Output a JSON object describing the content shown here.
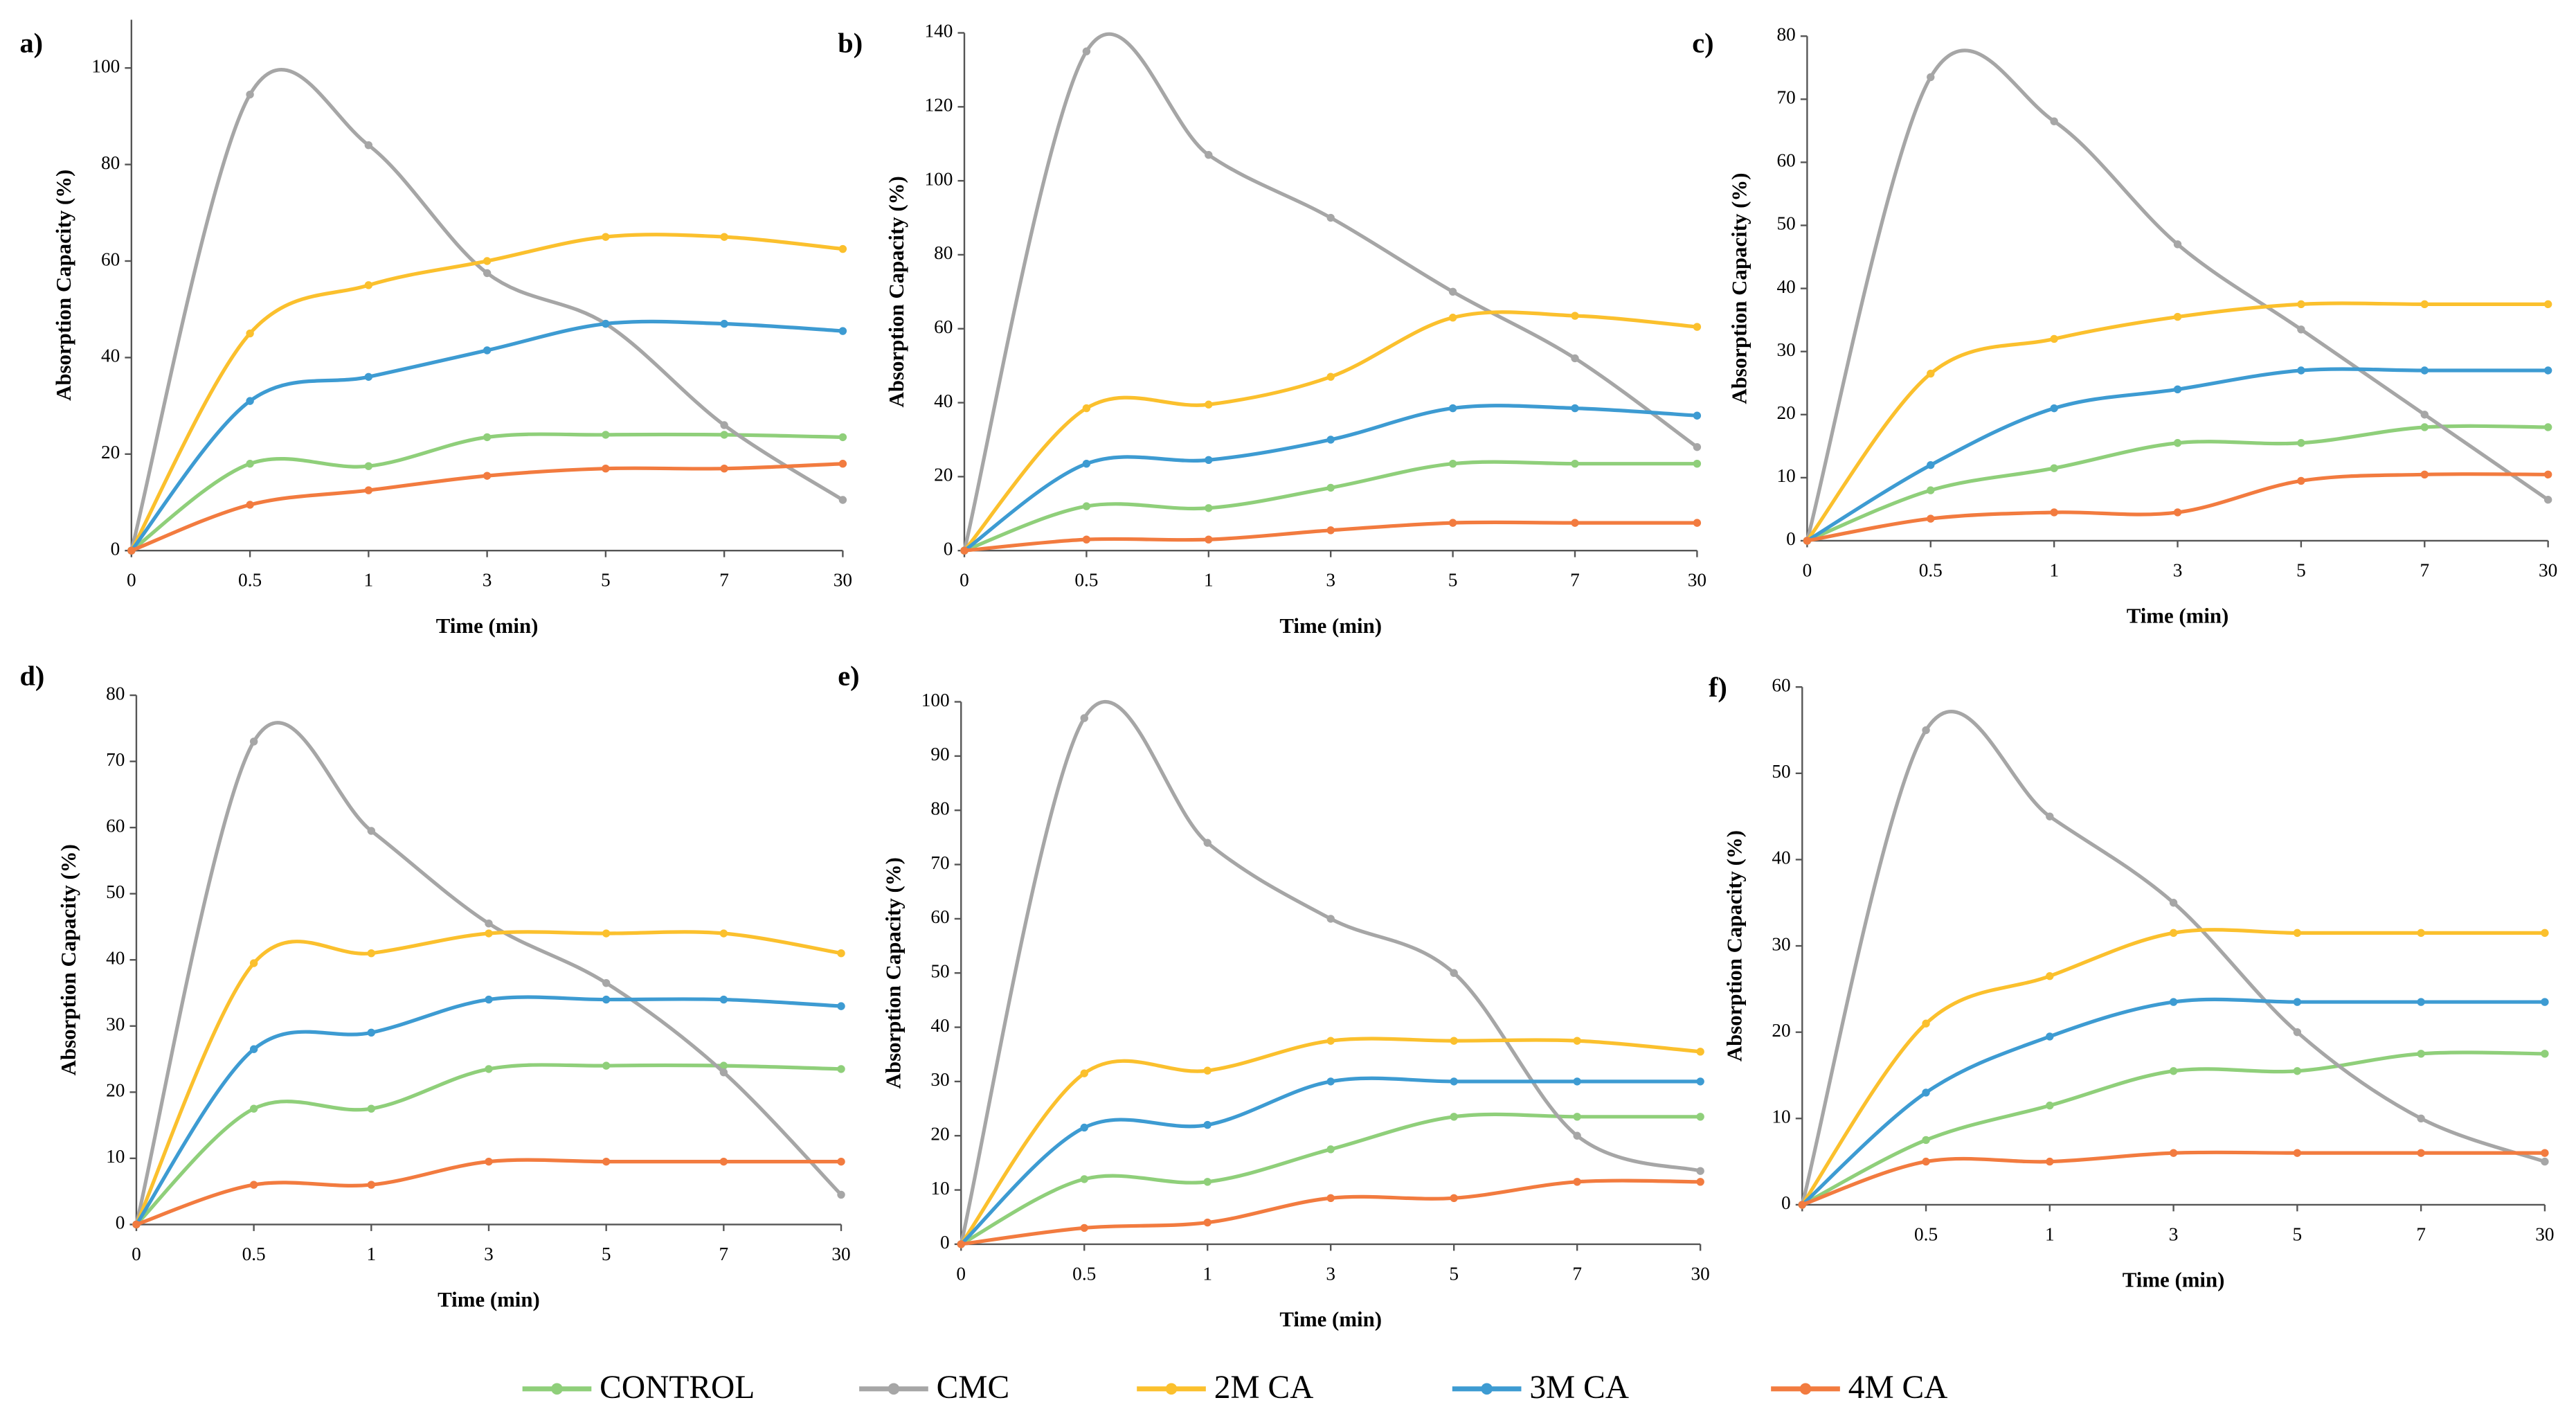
{
  "chart_data": [
    {
      "type": "line",
      "label": "a)",
      "x_label": "Time (min)",
      "y_label": "Absorption Capacity (%)",
      "categories": [
        "0",
        "0.5",
        "1",
        "3",
        "5",
        "7",
        "30"
      ],
      "ylim": [
        0,
        110
      ],
      "yticks": [
        0,
        20,
        40,
        60,
        80,
        100
      ],
      "series": [
        {
          "name": "CONTROL",
          "color": "#8fcf7a",
          "values": [
            0,
            18,
            17.5,
            23.5,
            24,
            24,
            23.5
          ]
        },
        {
          "name": "CMC",
          "color": "#a6a6a6",
          "values": [
            0,
            94.5,
            84,
            57.5,
            47,
            26,
            10.5
          ]
        },
        {
          "name": "2M CA",
          "color": "#fbc02d",
          "values": [
            0,
            45,
            55,
            60,
            65,
            65,
            62.5
          ]
        },
        {
          "name": "3M CA",
          "color": "#3d9bd2",
          "values": [
            0,
            31,
            36,
            41.5,
            47,
            47,
            45.5
          ]
        },
        {
          "name": "4M CA",
          "color": "#f27b3f",
          "values": [
            0,
            9.5,
            12.5,
            15.5,
            17,
            17,
            18
          ]
        }
      ]
    },
    {
      "type": "line",
      "label": "b)",
      "x_label": "Time (min)",
      "y_label": "Absorption Capacity (%)",
      "categories": [
        "0",
        "0.5",
        "1",
        "3",
        "5",
        "7",
        "30"
      ],
      "ylim": [
        0,
        140
      ],
      "yticks": [
        0,
        20,
        40,
        60,
        80,
        100,
        120,
        140
      ],
      "series": [
        {
          "values": [
            0,
            12,
            11.5,
            17,
            23.5,
            23.5,
            23.5
          ]
        },
        {
          "values": [
            0,
            135,
            107,
            90,
            70,
            52,
            28
          ]
        },
        {
          "values": [
            0,
            38.5,
            39.5,
            47,
            63,
            63.5,
            60.5
          ]
        },
        {
          "values": [
            0,
            23.5,
            24.5,
            30,
            38.5,
            38.5,
            36.5
          ]
        },
        {
          "values": [
            0,
            3,
            3,
            5.5,
            7.5,
            7.5,
            7.5
          ]
        }
      ]
    },
    {
      "type": "line",
      "label": "c)",
      "x_label": "Time (min)",
      "y_label": "Absorption Capacity (%)",
      "categories": [
        "0",
        "0.5",
        "1",
        "3",
        "5",
        "7",
        "30"
      ],
      "ylim": [
        0,
        80
      ],
      "yticks": [
        0,
        10,
        20,
        30,
        40,
        50,
        60,
        70,
        80
      ],
      "series": [
        {
          "values": [
            0,
            8,
            11.5,
            15.5,
            15.5,
            18,
            18
          ]
        },
        {
          "values": [
            0,
            73.5,
            66.5,
            47,
            33.5,
            20,
            6.5
          ]
        },
        {
          "values": [
            0,
            26.5,
            32,
            35.5,
            37.5,
            37.5,
            37.5
          ]
        },
        {
          "values": [
            0,
            12,
            21,
            24,
            27,
            27,
            27
          ]
        },
        {
          "values": [
            0,
            3.5,
            4.5,
            4.5,
            9.5,
            10.5,
            10.5
          ]
        }
      ]
    },
    {
      "type": "line",
      "label": "d)",
      "x_label": "Time (min)",
      "y_label": "Absorption Capacity (%)",
      "categories": [
        "0",
        "0.5",
        "1",
        "3",
        "5",
        "7",
        "30"
      ],
      "ylim": [
        0,
        80
      ],
      "yticks": [
        0,
        10,
        20,
        30,
        40,
        50,
        60,
        70,
        80
      ],
      "series": [
        {
          "values": [
            0,
            17.5,
            17.5,
            23.5,
            24,
            24,
            23.5
          ]
        },
        {
          "values": [
            0,
            73,
            59.5,
            45.5,
            36.5,
            23,
            4.5
          ]
        },
        {
          "values": [
            0,
            39.5,
            41,
            44,
            44,
            44,
            41
          ]
        },
        {
          "values": [
            0,
            26.5,
            29,
            34,
            34,
            34,
            33
          ]
        },
        {
          "values": [
            0,
            6,
            6,
            9.5,
            9.5,
            9.5,
            9.5
          ]
        }
      ]
    },
    {
      "type": "line",
      "label": "e)",
      "x_label": "Time (min)",
      "y_label": "Absorption Capacity (%)",
      "categories": [
        "0",
        "0.5",
        "1",
        "3",
        "5",
        "7",
        "30"
      ],
      "ylim": [
        0,
        100
      ],
      "yticks": [
        0,
        10,
        20,
        30,
        40,
        50,
        60,
        70,
        80,
        90,
        100
      ],
      "series": [
        {
          "values": [
            0,
            12,
            11.5,
            17.5,
            23.5,
            23.5,
            23.5
          ]
        },
        {
          "values": [
            0,
            97,
            74,
            60,
            50,
            20,
            13.5
          ]
        },
        {
          "values": [
            0,
            31.5,
            32,
            37.5,
            37.5,
            37.5,
            35.5
          ]
        },
        {
          "values": [
            0,
            21.5,
            22,
            30,
            30,
            30,
            30
          ]
        },
        {
          "values": [
            0,
            3,
            4,
            8.5,
            8.5,
            11.5,
            11.5
          ]
        }
      ]
    },
    {
      "type": "line",
      "label": "f)",
      "x_label": "Time (min)",
      "y_label": "Absorption Capacity (%)",
      "categories": [
        null,
        "0.5",
        "1",
        "3",
        "5",
        "7",
        "30"
      ],
      "ylim": [
        0,
        60
      ],
      "yticks": [
        0,
        10,
        20,
        30,
        40,
        50,
        60
      ],
      "series": [
        {
          "values": [
            0,
            7.5,
            11.5,
            15.5,
            15.5,
            17.5,
            17.5
          ]
        },
        {
          "values": [
            0,
            55,
            45,
            35,
            20,
            10,
            5
          ]
        },
        {
          "values": [
            0,
            21,
            26.5,
            31.5,
            31.5,
            31.5,
            31.5
          ]
        },
        {
          "values": [
            0,
            13,
            19.5,
            23.5,
            23.5,
            23.5,
            23.5
          ]
        },
        {
          "values": [
            0,
            5,
            5,
            6,
            6,
            6,
            6
          ]
        }
      ]
    }
  ]
}
